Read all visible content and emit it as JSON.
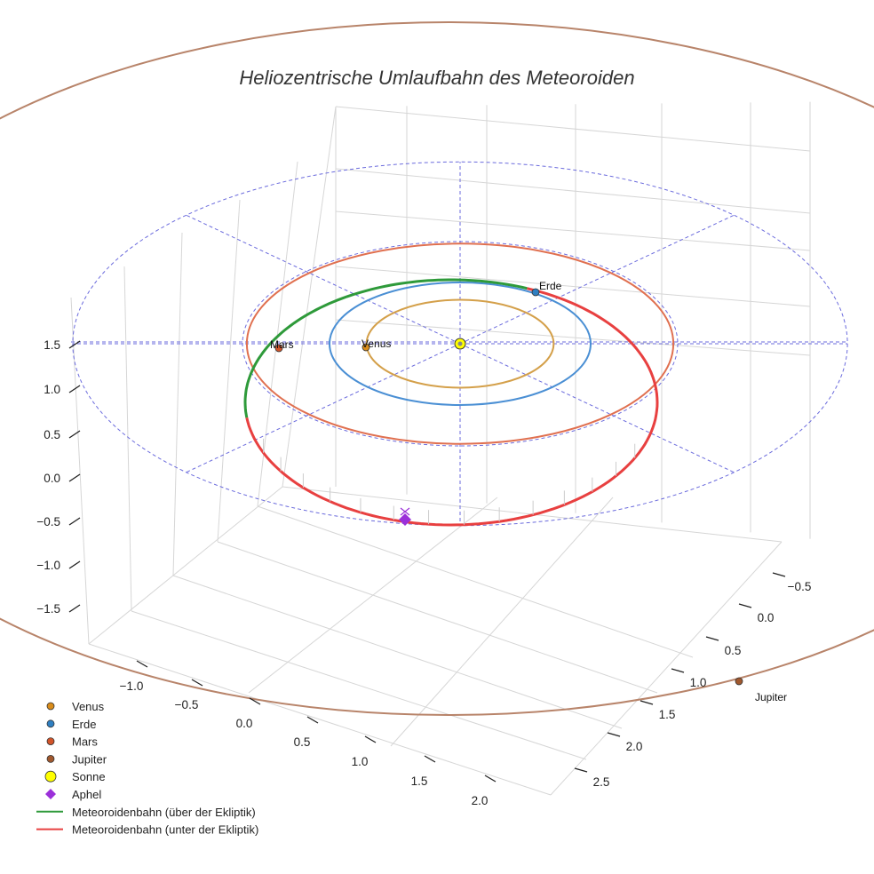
{
  "chart_data": {
    "type": "line",
    "projection": "3d",
    "title": "Heliozentrische Umlaufbahn des Meteoroiden",
    "xlabel": "",
    "ylabel": "",
    "zlabel": "",
    "x_ticks": [
      "−1.0",
      "−0.5",
      "0.0",
      "0.5",
      "1.0",
      "1.5",
      "2.0"
    ],
    "y_ticks": [
      "−0.5",
      "0.0",
      "0.5",
      "1.0",
      "1.5",
      "2.0",
      "2.5"
    ],
    "z_ticks": [
      "−1.5",
      "−1.0",
      "−0.5",
      "0.0",
      "0.5",
      "1.0",
      "1.5"
    ],
    "orbits": [
      {
        "name": "Venus",
        "radius_au": 0.72,
        "color": "#d4a04a"
      },
      {
        "name": "Erde",
        "radius_au": 1.0,
        "color": "#4a8fd4"
      },
      {
        "name": "Mars",
        "radius_au": 1.52,
        "color": "#e07050"
      },
      {
        "name": "Jupiter",
        "radius_au": 5.2,
        "color": "#b8846a"
      }
    ],
    "planets": [
      {
        "name": "Venus",
        "label": "Venus",
        "color": "#d98c1a"
      },
      {
        "name": "Erde",
        "label": "Erde",
        "color": "#2f7fc1"
      },
      {
        "name": "Mars",
        "label": "Mars",
        "color": "#d2542a"
      },
      {
        "name": "Jupiter",
        "label": "Jupiter",
        "color": "#a0582e"
      }
    ],
    "sun": {
      "name": "Sonne",
      "color": "#ffff00"
    },
    "aphel": {
      "name": "Aphel",
      "color": "#9b30d9",
      "distance_au": 2.12
    },
    "series": [
      {
        "name": "Meteoroidenbahn (über der Ekliptik)",
        "color": "#2e9a3a",
        "perihel_au": 0.98,
        "aphel_au": 2.12
      },
      {
        "name": "Meteoroidenbahn (unter der Ekliptik)",
        "color": "#e84040",
        "perihel_au": 0.98,
        "aphel_au": 2.12
      }
    ],
    "ecliptic_grid_color": "#6b6bdd",
    "legend_position": "lower-left",
    "legend": [
      {
        "label": "Venus",
        "marker": "circle",
        "color": "#d98c1a"
      },
      {
        "label": "Erde",
        "marker": "circle",
        "color": "#2f7fc1"
      },
      {
        "label": "Mars",
        "marker": "circle",
        "color": "#d2542a"
      },
      {
        "label": "Jupiter",
        "marker": "circle",
        "color": "#a0582e"
      },
      {
        "label": "Sonne",
        "marker": "circle-large",
        "color": "#ffff00"
      },
      {
        "label": "Aphel",
        "marker": "diamond",
        "color": "#9b30d9"
      },
      {
        "label": "Meteoroidenbahn (über der Ekliptik)",
        "marker": "line",
        "color": "#2e9a3a"
      },
      {
        "label": "Meteoroidenbahn (unter der Ekliptik)",
        "marker": "line",
        "color": "#e84040"
      }
    ]
  }
}
